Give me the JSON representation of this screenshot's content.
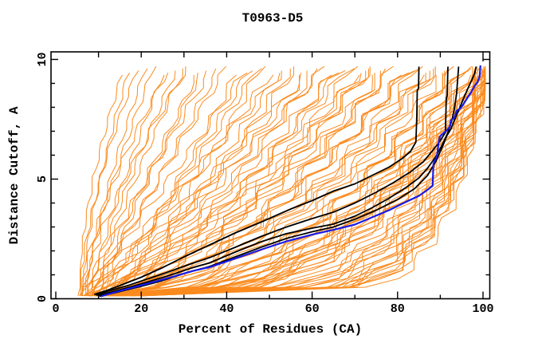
{
  "chart_data": {
    "type": "line",
    "title": "T0963-D5",
    "xlabel": "Percent of Residues (CA)",
    "ylabel": "Distance Cutoff, A",
    "xlim": [
      0,
      100
    ],
    "ylim": [
      0,
      10
    ],
    "x_major_ticks": [
      0,
      20,
      40,
      60,
      80,
      100
    ],
    "x_minor_ticks": [
      10,
      30,
      50,
      70,
      90
    ],
    "x_tick_labels": [
      "0",
      "20",
      "40",
      "60",
      "80",
      "100"
    ],
    "y_major_ticks": [
      0,
      5,
      10
    ],
    "y_minor_ticks": [
      1,
      2,
      3,
      4,
      6,
      7,
      8,
      9
    ],
    "y_tick_labels": [
      "0",
      "5",
      "10"
    ],
    "grid": false,
    "legend_position": "none",
    "colors": {
      "models": "#FB8B1E",
      "references": "#000000",
      "highlight": "#1A1AE8",
      "frame": "#000000",
      "background": "#FFFFFF"
    },
    "series": {
      "highlight_model": {
        "name": "blue-model-curve",
        "points": [
          [
            10.6,
            0.1
          ],
          [
            14,
            0.28
          ],
          [
            18,
            0.47
          ],
          [
            22,
            0.66
          ],
          [
            27,
            0.9
          ],
          [
            32,
            1.16
          ],
          [
            36,
            1.32
          ],
          [
            42,
            1.68
          ],
          [
            48,
            2.05
          ],
          [
            54,
            2.4
          ],
          [
            60,
            2.68
          ],
          [
            65,
            2.88
          ],
          [
            70,
            3.1
          ],
          [
            74,
            3.4
          ],
          [
            78,
            3.7
          ],
          [
            82,
            4.05
          ],
          [
            85,
            4.3
          ],
          [
            87,
            4.55
          ],
          [
            88.2,
            4.72
          ],
          [
            88.4,
            5.65
          ],
          [
            89.2,
            5.95
          ],
          [
            89.6,
            6.5
          ],
          [
            89.9,
            6.78
          ],
          [
            90.6,
            6.9
          ],
          [
            91.6,
            7.05
          ],
          [
            92.2,
            7.18
          ],
          [
            92.5,
            7.45
          ],
          [
            93.3,
            7.57
          ],
          [
            93.8,
            7.85
          ],
          [
            94.8,
            7.97
          ],
          [
            95.3,
            8.1
          ],
          [
            96.2,
            8.35
          ],
          [
            97.1,
            8.6
          ],
          [
            98,
            8.88
          ],
          [
            98.7,
            9.05
          ],
          [
            99.2,
            9.27
          ],
          [
            99.4,
            9.75
          ]
        ]
      },
      "reference_models": [
        {
          "name": "black-curve-1",
          "points": [
            [
              9,
              0.18
            ],
            [
              12,
              0.35
            ],
            [
              16,
              0.62
            ],
            [
              20,
              0.9
            ],
            [
              25,
              1.3
            ],
            [
              30,
              1.75
            ],
            [
              36,
              2.25
            ],
            [
              42,
              2.75
            ],
            [
              48,
              3.2
            ],
            [
              55,
              3.75
            ],
            [
              60,
              4.1
            ],
            [
              65,
              4.5
            ],
            [
              70,
              4.8
            ],
            [
              74,
              5.15
            ],
            [
              78,
              5.5
            ],
            [
              81,
              5.85
            ],
            [
              83,
              6.15
            ],
            [
              84.3,
              6.55
            ],
            [
              84.5,
              7.6
            ],
            [
              84.6,
              8.7
            ],
            [
              84.9,
              8.8
            ],
            [
              85,
              9.7
            ]
          ]
        },
        {
          "name": "black-curve-2",
          "points": [
            [
              9.4,
              0.15
            ],
            [
              13,
              0.36
            ],
            [
              17,
              0.56
            ],
            [
              21,
              0.8
            ],
            [
              26,
              1.1
            ],
            [
              31,
              1.42
            ],
            [
              36,
              1.72
            ],
            [
              42,
              2.15
            ],
            [
              48,
              2.6
            ],
            [
              54,
              3.0
            ],
            [
              60,
              3.35
            ],
            [
              65,
              3.62
            ],
            [
              70,
              4.0
            ],
            [
              75,
              4.45
            ],
            [
              79,
              4.85
            ],
            [
              83,
              5.3
            ],
            [
              86,
              5.72
            ],
            [
              88,
              6.15
            ],
            [
              89.8,
              6.55
            ],
            [
              91.2,
              6.95
            ],
            [
              91.4,
              8.35
            ],
            [
              91.6,
              8.5
            ],
            [
              91.8,
              9.7
            ]
          ]
        },
        {
          "name": "black-curve-3",
          "points": [
            [
              9.8,
              0.13
            ],
            [
              14,
              0.33
            ],
            [
              18,
              0.52
            ],
            [
              22,
              0.73
            ],
            [
              27,
              1.0
            ],
            [
              32,
              1.3
            ],
            [
              36,
              1.5
            ],
            [
              42,
              1.95
            ],
            [
              48,
              2.38
            ],
            [
              54,
              2.72
            ],
            [
              60,
              2.95
            ],
            [
              65,
              3.12
            ],
            [
              70,
              3.45
            ],
            [
              74,
              3.8
            ],
            [
              78,
              4.2
            ],
            [
              82,
              4.65
            ],
            [
              85,
              5.05
            ],
            [
              87,
              5.45
            ],
            [
              89,
              5.95
            ],
            [
              90.5,
              6.45
            ],
            [
              91.8,
              6.95
            ],
            [
              92.7,
              7.45
            ],
            [
              93.3,
              7.95
            ],
            [
              93.8,
              8.55
            ],
            [
              94,
              9.0
            ],
            [
              94.3,
              9.7
            ]
          ]
        },
        {
          "name": "black-curve-4",
          "points": [
            [
              10.2,
              0.1
            ],
            [
              15,
              0.3
            ],
            [
              20,
              0.52
            ],
            [
              25,
              0.76
            ],
            [
              30,
              1.05
            ],
            [
              36,
              1.35
            ],
            [
              42,
              1.75
            ],
            [
              48,
              2.15
            ],
            [
              54,
              2.52
            ],
            [
              60,
              2.8
            ],
            [
              65,
              3.0
            ],
            [
              70,
              3.32
            ],
            [
              75,
              3.7
            ],
            [
              80,
              4.15
            ],
            [
              84,
              4.6
            ],
            [
              87,
              5.15
            ],
            [
              89,
              5.75
            ],
            [
              90.5,
              6.35
            ],
            [
              91.5,
              6.8
            ],
            [
              92.5,
              7.1
            ],
            [
              93.5,
              7.55
            ],
            [
              94.5,
              7.95
            ],
            [
              95.5,
              8.4
            ],
            [
              96.5,
              8.8
            ],
            [
              97.4,
              9.15
            ],
            [
              98.1,
              9.45
            ],
            [
              98.4,
              9.7
            ]
          ]
        }
      ],
      "server_models": {
        "name": "server-model-curves",
        "count": 100,
        "start_y": 0.12,
        "end_y_base": 9.35,
        "end_y_step": 0.09,
        "params_format": [
          "start_x",
          "top_x",
          "shape_exponent"
        ],
        "curves": [
          [
            5.2,
            15.5,
            0.6
          ],
          [
            6,
            17,
            0.7
          ],
          [
            5.5,
            19,
            0.65
          ],
          [
            7,
            21,
            0.75
          ],
          [
            6.5,
            23,
            0.8
          ],
          [
            8,
            25,
            0.85
          ],
          [
            5.8,
            26,
            0.7
          ],
          [
            7.5,
            28,
            0.9
          ],
          [
            9,
            30,
            0.85
          ],
          [
            6.2,
            31,
            0.75
          ],
          [
            8.5,
            33,
            0.95
          ],
          [
            10,
            34,
            0.9
          ],
          [
            5.5,
            36,
            1.0
          ],
          [
            7,
            38,
            1.1
          ],
          [
            9,
            40,
            0.95
          ],
          [
            11,
            42,
            1.15
          ],
          [
            6,
            44,
            1.05
          ],
          [
            8,
            45,
            1.2
          ],
          [
            10,
            47,
            1.1
          ],
          [
            12,
            48,
            1.25
          ],
          [
            7.5,
            50,
            1.15
          ],
          [
            9.5,
            52,
            1.3
          ],
          [
            5.8,
            53,
            1.05
          ],
          [
            11.5,
            55,
            1.2
          ],
          [
            8.2,
            56,
            1.35
          ],
          [
            10.8,
            58,
            1.25
          ],
          [
            6.8,
            59,
            1.1
          ],
          [
            12.5,
            60,
            1.4
          ],
          [
            9.2,
            62,
            1.3
          ],
          [
            7.2,
            63,
            1.15
          ],
          [
            13,
            64,
            1.45
          ],
          [
            10.2,
            65,
            1.25
          ],
          [
            6.5,
            66,
            1.5
          ],
          [
            8.8,
            68,
            1.4
          ],
          [
            11,
            69,
            1.6
          ],
          [
            13.5,
            70,
            1.5
          ],
          [
            7.8,
            71,
            1.35
          ],
          [
            9.8,
            72,
            1.65
          ],
          [
            12.2,
            73,
            1.55
          ],
          [
            6.2,
            74,
            1.45
          ],
          [
            14,
            75,
            1.7
          ],
          [
            8.4,
            76,
            1.5
          ],
          [
            10.5,
            77,
            1.8
          ],
          [
            12.8,
            78,
            1.6
          ],
          [
            7.4,
            79,
            1.55
          ],
          [
            9.4,
            80,
            1.9
          ],
          [
            11.8,
            81,
            1.7
          ],
          [
            13.2,
            82,
            1.6
          ],
          [
            6.9,
            83,
            1.75
          ],
          [
            8.9,
            84,
            2.0
          ],
          [
            10.9,
            85,
            1.8
          ],
          [
            12.4,
            86,
            1.9
          ],
          [
            14.5,
            87,
            1.7
          ],
          [
            7.7,
            88,
            2.1
          ],
          [
            9.1,
            89,
            2.2
          ],
          [
            11.1,
            90,
            2.0
          ],
          [
            13.1,
            91,
            2.3
          ],
          [
            15,
            92,
            2.1
          ],
          [
            8.1,
            92.5,
            2.4
          ],
          [
            10.1,
            93,
            2.2
          ],
          [
            12.1,
            93.5,
            2.5
          ],
          [
            14.2,
            94,
            2.3
          ],
          [
            16,
            94.5,
            2.6
          ],
          [
            8.6,
            95,
            2.4
          ],
          [
            10.6,
            95.5,
            2.7
          ],
          [
            12.6,
            96,
            2.5
          ],
          [
            14.8,
            96.5,
            2.8
          ],
          [
            9.6,
            97,
            2.6
          ],
          [
            11.6,
            97.3,
            3.0
          ],
          [
            13.6,
            97.6,
            2.7
          ],
          [
            15.5,
            98,
            3.1
          ],
          [
            8.3,
            98.3,
            2.8
          ],
          [
            10.3,
            98.6,
            3.2
          ],
          [
            12.3,
            98.9,
            2.9
          ],
          [
            14.4,
            99.1,
            3.3
          ],
          [
            16.5,
            99.3,
            3.0
          ],
          [
            9.9,
            99.4,
            3.6
          ],
          [
            11.9,
            99.5,
            4.0
          ],
          [
            13.9,
            99.5,
            3.4
          ],
          [
            15.8,
            99.6,
            4.4
          ],
          [
            17,
            99.6,
            3.8
          ],
          [
            10.4,
            99.7,
            4.8
          ],
          [
            12.4,
            99.7,
            4.2
          ],
          [
            14.6,
            99.8,
            5.2
          ],
          [
            16.2,
            99.8,
            4.6
          ],
          [
            18,
            99.8,
            5.6
          ],
          [
            11.4,
            99.9,
            5.0
          ],
          [
            13.4,
            99.9,
            6.0
          ],
          [
            15.2,
            99.9,
            5.4
          ],
          [
            17.5,
            100,
            6.5
          ],
          [
            19,
            100,
            5.8
          ],
          [
            12.9,
            100,
            7.0
          ],
          [
            14.9,
            100,
            6.2
          ],
          [
            16.9,
            100,
            7.5
          ],
          [
            18.5,
            100,
            6.8
          ],
          [
            10.9,
            100,
            8.0
          ],
          [
            19.5,
            100,
            7.2
          ],
          [
            20,
            100,
            8.5
          ],
          [
            9.3,
            99.2,
            3.2
          ],
          [
            7.9,
            99,
            3.0
          ]
        ]
      }
    }
  }
}
